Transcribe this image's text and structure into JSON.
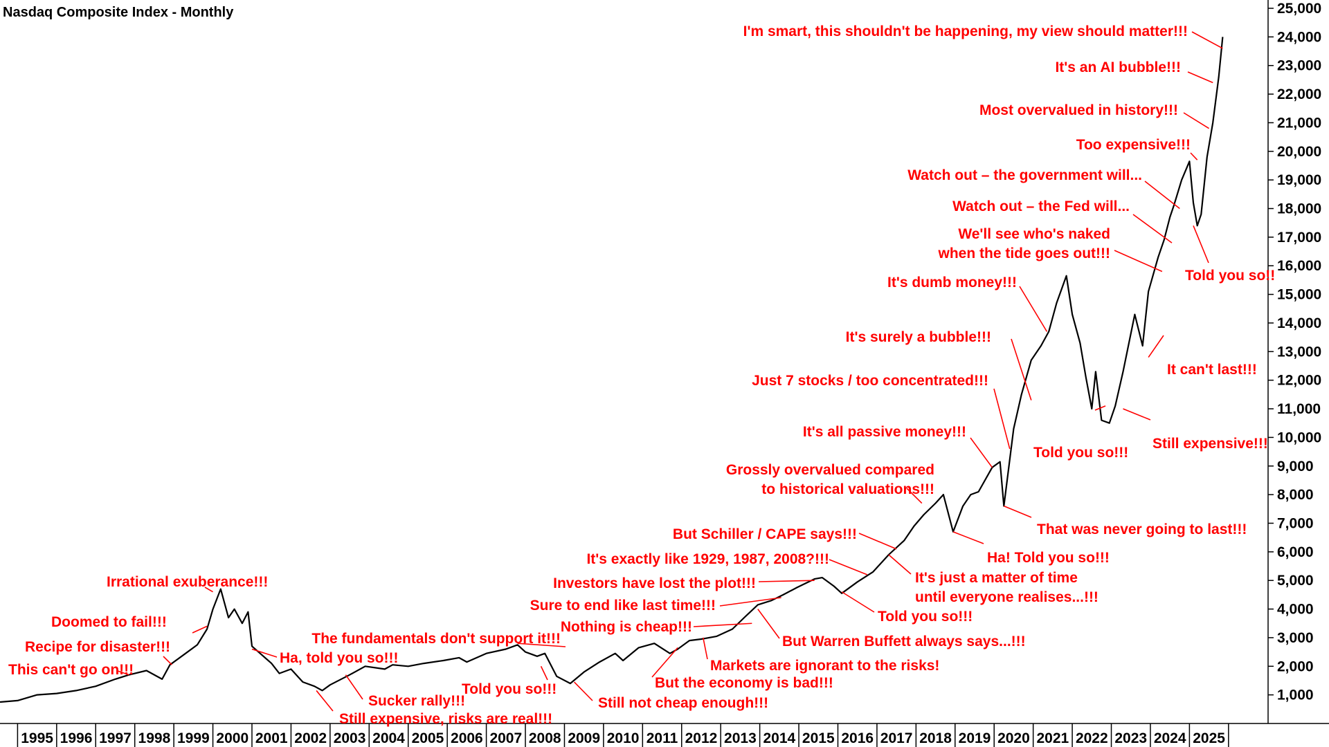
{
  "chart_data": {
    "type": "line",
    "title": "Nasdaq Composite Index - Monthly",
    "xlabel": "",
    "ylabel": "",
    "ylim": [
      0,
      25000
    ],
    "xlim": [
      1994.55,
      2025.95
    ],
    "grid": false,
    "y_axis_position": "right",
    "line_color": "#000000",
    "annotation_color": "#ff0000",
    "y_ticks": [
      1000,
      2000,
      3000,
      4000,
      5000,
      6000,
      7000,
      8000,
      9000,
      10000,
      11000,
      12000,
      13000,
      14000,
      15000,
      16000,
      17000,
      18000,
      19000,
      20000,
      21000,
      22000,
      23000,
      24000,
      25000
    ],
    "y_tick_labels": [
      "1,000",
      "2,000",
      "3,000",
      "4,000",
      "5,000",
      "6,000",
      "7,000",
      "8,000",
      "9,000",
      "10,000",
      "11,000",
      "12,000",
      "13,000",
      "14,000",
      "15,000",
      "16,000",
      "17,000",
      "18,000",
      "19,000",
      "20,000",
      "21,000",
      "22,000",
      "23,000",
      "24,000",
      "25,000"
    ],
    "x_tick_labels": [
      "1995",
      "1996",
      "1997",
      "1998",
      "1999",
      "2000",
      "2001",
      "2002",
      "2003",
      "2004",
      "2005",
      "2006",
      "2007",
      "2008",
      "2009",
      "2010",
      "2011",
      "2012",
      "2013",
      "2014",
      "2015",
      "2016",
      "2017",
      "2018",
      "2019",
      "2020",
      "2021",
      "2022",
      "2023",
      "2024",
      "2025"
    ],
    "series": [
      {
        "x": [
          1994.55,
          1995.0,
          1995.5,
          1996.0,
          1996.5,
          1997.0,
          1997.5,
          1997.85,
          1998.3,
          1998.7,
          1998.9,
          1999.3,
          1999.6,
          1999.85,
          2000.0,
          2000.2,
          2000.4,
          2000.55,
          2000.75,
          2000.9,
          2001.0,
          2001.25,
          2001.5,
          2001.7,
          2002.0,
          2002.3,
          2002.6,
          2002.8,
          2003.0,
          2003.5,
          2003.9,
          2004.4,
          2004.6,
          2005.0,
          2005.4,
          2005.9,
          2006.3,
          2006.5,
          2007.0,
          2007.5,
          2007.8,
          2008.0,
          2008.3,
          2008.5,
          2008.8,
          2009.15,
          2009.5,
          2009.9,
          2010.3,
          2010.5,
          2010.9,
          2011.3,
          2011.7,
          2011.9,
          2012.2,
          2012.5,
          2012.9,
          2013.3,
          2013.6,
          2013.95,
          2014.3,
          2014.6,
          2014.95,
          2015.4,
          2015.6,
          2015.9,
          2016.1,
          2016.5,
          2016.9,
          2017.3,
          2017.7,
          2017.95,
          2018.2,
          2018.5,
          2018.7,
          2018.95,
          2019.2,
          2019.4,
          2019.6,
          2019.95,
          2020.15,
          2020.25,
          2020.5,
          2020.7,
          2020.95,
          2021.2,
          2021.4,
          2021.6,
          2021.85,
          2022.0,
          2022.2,
          2022.35,
          2022.5,
          2022.6,
          2022.75,
          2022.95,
          2023.1,
          2023.3,
          2023.6,
          2023.8,
          2023.95,
          2024.2,
          2024.35,
          2024.5,
          2024.6,
          2024.8,
          2025.0,
          2025.1,
          2025.2,
          2025.3,
          2025.45,
          2025.6,
          2025.75,
          2025.85
        ],
        "values": [
          750,
          800,
          1000,
          1050,
          1150,
          1300,
          1550,
          1700,
          1850,
          1550,
          2050,
          2450,
          2750,
          3300,
          4000,
          4700,
          3700,
          4000,
          3500,
          3900,
          2700,
          2400,
          2100,
          1750,
          1900,
          1450,
          1300,
          1150,
          1350,
          1700,
          2000,
          1900,
          2050,
          2000,
          2100,
          2200,
          2300,
          2150,
          2450,
          2600,
          2750,
          2500,
          2350,
          2450,
          1650,
          1400,
          1800,
          2150,
          2450,
          2200,
          2650,
          2800,
          2450,
          2600,
          2900,
          2950,
          3050,
          3300,
          3700,
          4150,
          4300,
          4500,
          4750,
          5050,
          5100,
          4800,
          4550,
          4950,
          5300,
          5900,
          6400,
          6900,
          7300,
          7700,
          8000,
          6700,
          7600,
          8000,
          8100,
          8950,
          9150,
          7600,
          10300,
          11500,
          12700,
          13200,
          13700,
          14700,
          15650,
          14300,
          13300,
          12100,
          11000,
          12300,
          10600,
          10500,
          11100,
          12300,
          14300,
          13200,
          15100,
          16300,
          16900,
          17700,
          18100,
          19000,
          19650,
          18200,
          17400,
          17800,
          19800,
          21000,
          22600,
          24000
        ]
      }
    ],
    "annotations": [
      {
        "text": "I'm smart, this shouldn't be happening, my view should matter!!!",
        "x": 2025.85,
        "y": 23600
      },
      {
        "text": "It's an AI bubble!!!",
        "x": 2025.6,
        "y": 22400
      },
      {
        "text": "Most overvalued in history!!!",
        "x": 2025.5,
        "y": 20800
      },
      {
        "text": "Too expensive!!!",
        "x": 2025.2,
        "y": 19700
      },
      {
        "text": "Watch out – the government will...",
        "x": 2024.75,
        "y": 18000
      },
      {
        "text": "Watch out – the Fed will...",
        "x": 2024.55,
        "y": 16800
      },
      {
        "text": [
          "We'll see who's naked",
          "when the tide goes out!!!"
        ],
        "x": 2024.3,
        "y": 15800
      },
      {
        "text": "Told you so!!",
        "x": 2025.1,
        "y": 17400
      },
      {
        "text": "It's dumb money!!!",
        "x": 2021.35,
        "y": 13700
      },
      {
        "text": "It's surely a bubble!!!",
        "x": 2020.95,
        "y": 11300
      },
      {
        "text": "Just 7 stocks / too concentrated!!!",
        "x": 2020.4,
        "y": 9600
      },
      {
        "text": "It can't last!!!",
        "x": 2023.95,
        "y": 12800
      },
      {
        "text": "Told you so!!!",
        "x": 2022.85,
        "y": 11100
      },
      {
        "text": "Still expensive!!!",
        "x": 2023.3,
        "y": 11000
      },
      {
        "text": "It's all passive money!!!",
        "x": 2019.95,
        "y": 8950
      },
      {
        "text": [
          "Grossly overvalued compared",
          "to historical valuations!!!"
        ],
        "x": 2018.15,
        "y": 7700
      },
      {
        "text": "That was never going to last!!!",
        "x": 2020.25,
        "y": 7600
      },
      {
        "text": "Ha! Told you so!!!",
        "x": 2018.95,
        "y": 6700
      },
      {
        "text": "But Schiller / CAPE says!!!",
        "x": 2017.5,
        "y": 6100
      },
      {
        "text": [
          "It's just a matter of time",
          "until everyone realises...!!!"
        ],
        "x": 2017.3,
        "y": 5900
      },
      {
        "text": "It's exactly like 1929, 1987, 2008?!!!",
        "x": 2016.75,
        "y": 5200
      },
      {
        "text": "Told you so!!!",
        "x": 2016.1,
        "y": 4600
      },
      {
        "text": "Investors have lost the plot!!!",
        "x": 2015.4,
        "y": 5000
      },
      {
        "text": "Sure to end like last time!!!",
        "x": 2014.55,
        "y": 4400
      },
      {
        "text": "Nothing is cheap!!!",
        "x": 2013.8,
        "y": 3500
      },
      {
        "text": "But Warren Buffett always says...!!!",
        "x": 2013.95,
        "y": 4000
      },
      {
        "text": "Markets are ignorant to the risks!",
        "x": 2012.55,
        "y": 3000
      },
      {
        "text": "But the economy is bad!!!",
        "x": 2011.9,
        "y": 2650
      },
      {
        "text": "Still not cheap enough!!!",
        "x": 2009.25,
        "y": 1450
      },
      {
        "text": "Told you so!!!",
        "x": 2008.4,
        "y": 2000
      },
      {
        "text": "The fundamentals don't support it!!!",
        "x": 2007.8,
        "y": 2800
      },
      {
        "text": "Sucker rally!!!",
        "x": 2003.4,
        "y": 1700
      },
      {
        "text": "Still expensive, risks are real!!!",
        "x": 2002.65,
        "y": 1150
      },
      {
        "text": "Ha, told you so!!!",
        "x": 2001.0,
        "y": 2600
      },
      {
        "text": "Irrational exuberance!!!",
        "x": 2000.0,
        "y": 4600
      },
      {
        "text": "Doomed to fail!!!",
        "x": 1999.85,
        "y": 3400
      },
      {
        "text": "Recipe for disaster!!!",
        "x": 1998.95,
        "y": 2050
      },
      {
        "text": "This can't go on!!!",
        "x": 1997.85,
        "y": 1700
      }
    ]
  }
}
